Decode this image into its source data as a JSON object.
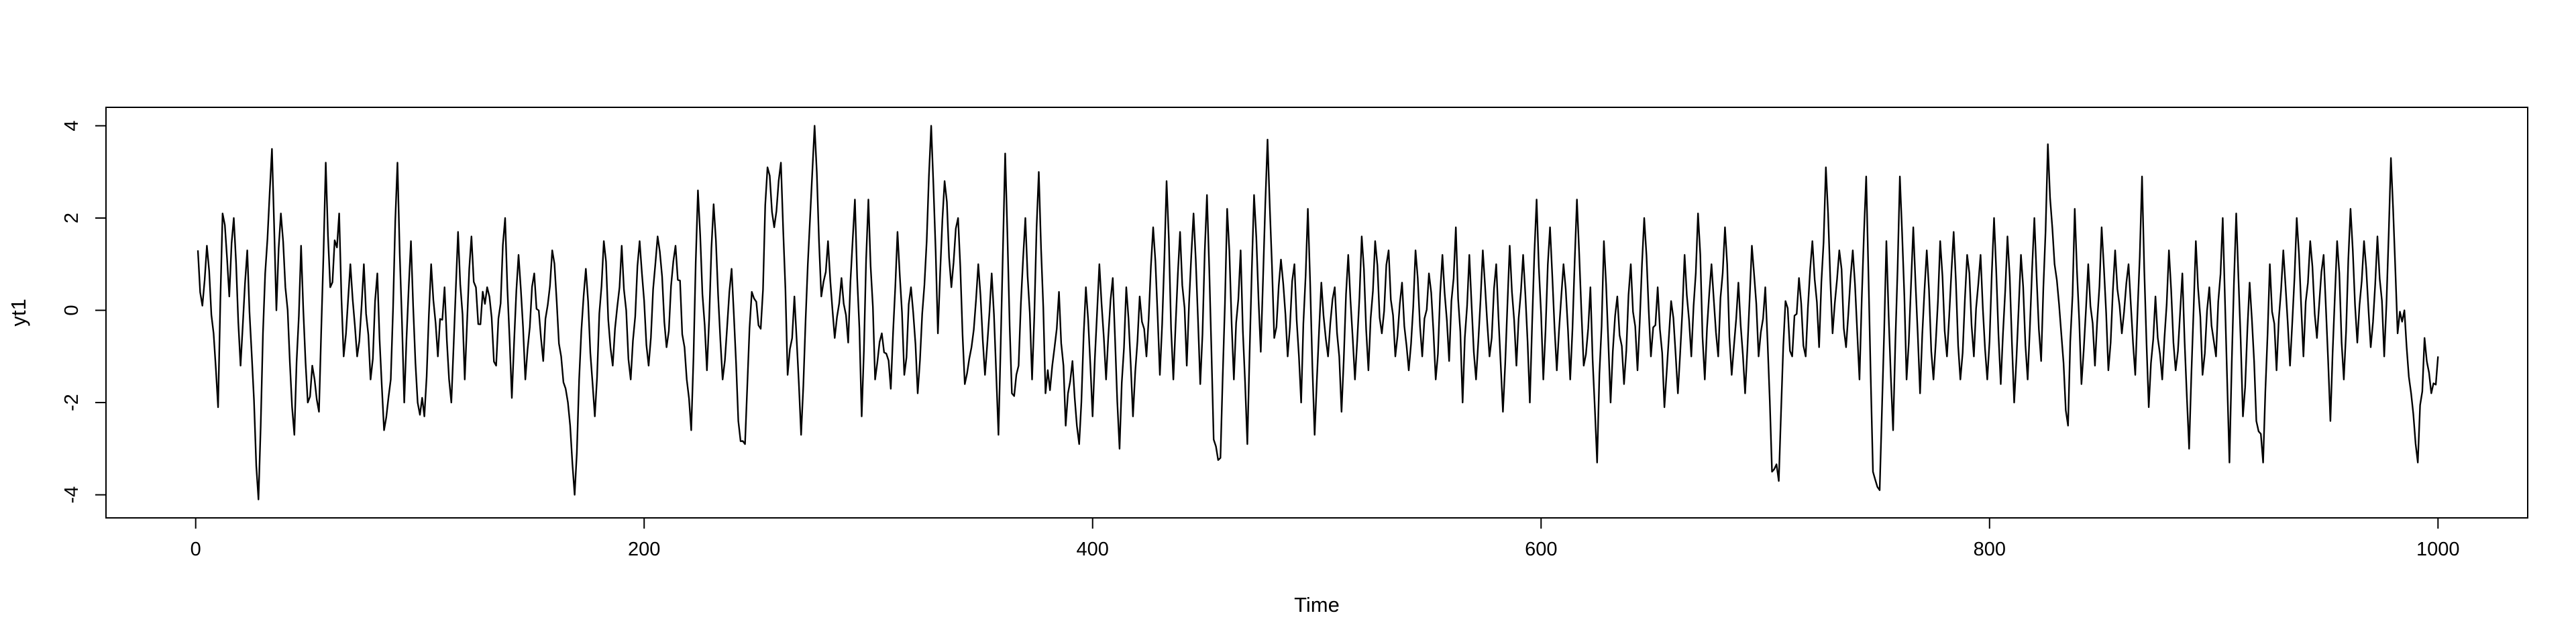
{
  "chart_data": {
    "type": "line",
    "title": "",
    "xlabel": "Time",
    "ylabel": "yt1",
    "xlim": [
      -40,
      1040
    ],
    "ylim": [
      -4.5,
      4.4
    ],
    "xticks": [
      0,
      200,
      400,
      600,
      800,
      1000
    ],
    "yticks": [
      -4,
      -2,
      0,
      2,
      4
    ],
    "xtick_labels": [
      "0",
      "200",
      "400",
      "600",
      "800",
      "1000"
    ],
    "ytick_labels": [
      "-4",
      "-2",
      "0",
      "2",
      "4"
    ],
    "grid": false,
    "line_color": "#000000",
    "series": [
      {
        "x_start": 1,
        "x_step": 1,
        "anchors": [
          [
            1,
            1.3
          ],
          [
            3,
            0.1
          ],
          [
            5,
            1.4
          ],
          [
            8,
            -0.5
          ],
          [
            10,
            -2.1
          ],
          [
            12,
            2.1
          ],
          [
            15,
            0.3
          ],
          [
            17,
            2.0
          ],
          [
            20,
            -1.2
          ],
          [
            23,
            1.3
          ],
          [
            28,
            -4.1
          ],
          [
            31,
            0.8
          ],
          [
            34,
            3.5
          ],
          [
            36,
            0.0
          ],
          [
            38,
            2.1
          ],
          [
            40,
            0.5
          ],
          [
            44,
            -2.7
          ],
          [
            47,
            1.4
          ],
          [
            50,
            -2.0
          ],
          [
            52,
            -1.2
          ],
          [
            55,
            -2.2
          ],
          [
            58,
            3.2
          ],
          [
            60,
            0.5
          ],
          [
            64,
            2.1
          ],
          [
            66,
            -1.0
          ],
          [
            69,
            1.0
          ],
          [
            72,
            -1.0
          ],
          [
            75,
            1.0
          ],
          [
            78,
            -1.5
          ],
          [
            81,
            0.8
          ],
          [
            84,
            -2.6
          ],
          [
            87,
            -1.5
          ],
          [
            90,
            3.2
          ],
          [
            93,
            -2.0
          ],
          [
            96,
            1.5
          ],
          [
            99,
            -2.0
          ],
          [
            102,
            -2.3
          ],
          [
            105,
            1.0
          ],
          [
            108,
            -1.0
          ],
          [
            111,
            0.5
          ],
          [
            114,
            -2.0
          ],
          [
            117,
            1.7
          ],
          [
            120,
            -1.5
          ],
          [
            123,
            1.6
          ],
          [
            126,
            -0.3
          ],
          [
            130,
            0.5
          ],
          [
            134,
            -1.2
          ],
          [
            138,
            2.0
          ],
          [
            141,
            -1.9
          ],
          [
            144,
            1.2
          ],
          [
            147,
            -1.5
          ],
          [
            151,
            0.8
          ],
          [
            155,
            -1.1
          ],
          [
            159,
            1.3
          ],
          [
            163,
            -1.0
          ],
          [
            166,
            -2.0
          ],
          [
            169,
            -4.0
          ],
          [
            171,
            -1.5
          ],
          [
            174,
            0.9
          ],
          [
            178,
            -2.3
          ],
          [
            182,
            1.5
          ],
          [
            186,
            -1.2
          ],
          [
            190,
            1.4
          ],
          [
            194,
            -1.5
          ],
          [
            198,
            1.5
          ],
          [
            202,
            -1.2
          ],
          [
            206,
            1.6
          ],
          [
            210,
            -0.8
          ],
          [
            214,
            1.4
          ],
          [
            218,
            -0.8
          ],
          [
            221,
            -2.6
          ],
          [
            224,
            2.6
          ],
          [
            228,
            -1.3
          ],
          [
            231,
            2.3
          ],
          [
            235,
            -1.5
          ],
          [
            239,
            0.9
          ],
          [
            242,
            -2.4
          ],
          [
            245,
            -2.9
          ],
          [
            248,
            0.4
          ],
          [
            252,
            -0.4
          ],
          [
            255,
            3.1
          ],
          [
            258,
            1.8
          ],
          [
            261,
            3.2
          ],
          [
            264,
            -1.4
          ],
          [
            267,
            0.3
          ],
          [
            270,
            -2.7
          ],
          [
            273,
            1.0
          ],
          [
            276,
            4.0
          ],
          [
            279,
            0.3
          ],
          [
            282,
            1.5
          ],
          [
            285,
            -0.6
          ],
          [
            288,
            0.7
          ],
          [
            291,
            -0.7
          ],
          [
            294,
            2.4
          ],
          [
            297,
            -2.3
          ],
          [
            300,
            2.4
          ],
          [
            303,
            -1.5
          ],
          [
            306,
            -0.5
          ],
          [
            310,
            -1.7
          ],
          [
            313,
            1.7
          ],
          [
            316,
            -1.4
          ],
          [
            319,
            0.5
          ],
          [
            322,
            -1.8
          ],
          [
            326,
            1.5
          ],
          [
            328,
            4.0
          ],
          [
            331,
            -0.5
          ],
          [
            334,
            2.8
          ],
          [
            337,
            0.5
          ],
          [
            340,
            2.0
          ],
          [
            343,
            -1.6
          ],
          [
            346,
            -0.8
          ],
          [
            349,
            1.0
          ],
          [
            352,
            -1.4
          ],
          [
            355,
            0.8
          ],
          [
            358,
            -2.7
          ],
          [
            361,
            3.4
          ],
          [
            364,
            -1.8
          ],
          [
            367,
            -1.2
          ],
          [
            370,
            2.0
          ],
          [
            373,
            -1.5
          ],
          [
            376,
            3.0
          ],
          [
            379,
            -1.8
          ],
          [
            382,
            -1.2
          ],
          [
            385,
            0.4
          ],
          [
            388,
            -2.5
          ],
          [
            391,
            -1.1
          ],
          [
            394,
            -2.9
          ],
          [
            397,
            0.5
          ],
          [
            400,
            -2.3
          ],
          [
            403,
            1.0
          ],
          [
            406,
            -1.5
          ],
          [
            409,
            0.7
          ],
          [
            412,
            -3.0
          ],
          [
            415,
            0.5
          ],
          [
            418,
            -2.3
          ],
          [
            421,
            0.3
          ],
          [
            424,
            -1.0
          ],
          [
            427,
            1.8
          ],
          [
            430,
            -1.4
          ],
          [
            433,
            2.8
          ],
          [
            436,
            -1.5
          ],
          [
            439,
            1.7
          ],
          [
            442,
            -1.2
          ],
          [
            445,
            2.1
          ],
          [
            448,
            -1.6
          ],
          [
            451,
            2.5
          ],
          [
            454,
            -2.8
          ],
          [
            457,
            -3.2
          ],
          [
            460,
            2.2
          ],
          [
            463,
            -1.5
          ],
          [
            466,
            1.3
          ],
          [
            469,
            -2.9
          ],
          [
            472,
            2.5
          ],
          [
            475,
            -0.9
          ],
          [
            478,
            3.7
          ],
          [
            481,
            -0.6
          ],
          [
            484,
            1.1
          ],
          [
            487,
            -1.0
          ],
          [
            490,
            1.0
          ],
          [
            493,
            -2.0
          ],
          [
            496,
            2.2
          ],
          [
            499,
            -2.7
          ],
          [
            502,
            0.6
          ],
          [
            505,
            -1.0
          ],
          [
            508,
            0.5
          ],
          [
            511,
            -2.2
          ],
          [
            514,
            1.2
          ],
          [
            517,
            -1.5
          ],
          [
            520,
            1.6
          ],
          [
            523,
            -1.3
          ],
          [
            526,
            1.5
          ],
          [
            529,
            -0.5
          ],
          [
            532,
            1.3
          ],
          [
            535,
            -1.0
          ],
          [
            538,
            0.6
          ],
          [
            541,
            -1.3
          ],
          [
            544,
            1.3
          ],
          [
            547,
            -1.0
          ],
          [
            550,
            0.8
          ],
          [
            553,
            -1.5
          ],
          [
            556,
            1.2
          ],
          [
            559,
            -1.1
          ],
          [
            562,
            1.8
          ],
          [
            565,
            -2.0
          ],
          [
            568,
            1.2
          ],
          [
            571,
            -1.5
          ],
          [
            574,
            1.3
          ],
          [
            577,
            -1.0
          ],
          [
            580,
            1.0
          ],
          [
            583,
            -2.2
          ],
          [
            586,
            1.4
          ],
          [
            589,
            -1.2
          ],
          [
            592,
            1.2
          ],
          [
            595,
            -2.0
          ],
          [
            598,
            2.4
          ],
          [
            601,
            -1.5
          ],
          [
            604,
            1.8
          ],
          [
            607,
            -1.3
          ],
          [
            610,
            1.0
          ],
          [
            613,
            -1.5
          ],
          [
            616,
            2.4
          ],
          [
            619,
            -1.2
          ],
          [
            622,
            0.5
          ],
          [
            625,
            -3.3
          ],
          [
            628,
            1.5
          ],
          [
            631,
            -2.0
          ],
          [
            634,
            0.3
          ],
          [
            637,
            -1.6
          ],
          [
            640,
            1.0
          ],
          [
            643,
            -1.3
          ],
          [
            646,
            2.0
          ],
          [
            649,
            -1.0
          ],
          [
            652,
            0.5
          ],
          [
            655,
            -2.1
          ],
          [
            658,
            0.2
          ],
          [
            661,
            -1.8
          ],
          [
            664,
            1.2
          ],
          [
            667,
            -1.0
          ],
          [
            670,
            2.1
          ],
          [
            673,
            -1.5
          ],
          [
            676,
            1.0
          ],
          [
            679,
            -1.0
          ],
          [
            682,
            1.8
          ],
          [
            685,
            -1.4
          ],
          [
            688,
            0.6
          ],
          [
            691,
            -1.8
          ],
          [
            694,
            1.4
          ],
          [
            697,
            -1.0
          ],
          [
            700,
            0.5
          ],
          [
            703,
            -3.5
          ],
          [
            706,
            -3.7
          ],
          [
            709,
            0.2
          ],
          [
            712,
            -1.0
          ],
          [
            715,
            0.7
          ],
          [
            718,
            -1.0
          ],
          [
            721,
            1.5
          ],
          [
            724,
            -0.8
          ],
          [
            727,
            3.1
          ],
          [
            730,
            -0.5
          ],
          [
            733,
            1.3
          ],
          [
            736,
            -0.8
          ],
          [
            739,
            1.3
          ],
          [
            742,
            -1.5
          ],
          [
            745,
            2.9
          ],
          [
            748,
            -3.5
          ],
          [
            751,
            -3.9
          ],
          [
            754,
            1.5
          ],
          [
            757,
            -2.6
          ],
          [
            760,
            2.9
          ],
          [
            763,
            -1.5
          ],
          [
            766,
            1.8
          ],
          [
            769,
            -1.8
          ],
          [
            772,
            1.3
          ],
          [
            775,
            -1.5
          ],
          [
            778,
            1.5
          ],
          [
            781,
            -1.0
          ],
          [
            784,
            1.7
          ],
          [
            787,
            -1.5
          ],
          [
            790,
            1.2
          ],
          [
            793,
            -1.0
          ],
          [
            796,
            1.2
          ],
          [
            799,
            -1.5
          ],
          [
            802,
            2.0
          ],
          [
            805,
            -1.6
          ],
          [
            808,
            1.6
          ],
          [
            811,
            -2.0
          ],
          [
            814,
            1.2
          ],
          [
            817,
            -1.5
          ],
          [
            820,
            2.0
          ],
          [
            823,
            -1.1
          ],
          [
            826,
            3.6
          ],
          [
            829,
            1.0
          ],
          [
            832,
            -0.5
          ],
          [
            835,
            -2.5
          ],
          [
            838,
            2.2
          ],
          [
            841,
            -1.6
          ],
          [
            844,
            1.0
          ],
          [
            847,
            -1.2
          ],
          [
            850,
            1.8
          ],
          [
            853,
            -1.3
          ],
          [
            856,
            1.3
          ],
          [
            859,
            -0.5
          ],
          [
            862,
            1.0
          ],
          [
            865,
            -1.4
          ],
          [
            868,
            2.9
          ],
          [
            871,
            -2.1
          ],
          [
            874,
            0.3
          ],
          [
            877,
            -1.5
          ],
          [
            880,
            1.3
          ],
          [
            883,
            -1.3
          ],
          [
            886,
            0.8
          ],
          [
            889,
            -3.0
          ],
          [
            892,
            1.5
          ],
          [
            895,
            -1.4
          ],
          [
            898,
            0.5
          ],
          [
            901,
            -1.0
          ],
          [
            904,
            2.0
          ],
          [
            907,
            -3.3
          ],
          [
            910,
            2.1
          ],
          [
            913,
            -2.3
          ],
          [
            916,
            0.6
          ],
          [
            919,
            -2.4
          ],
          [
            922,
            -3.3
          ],
          [
            925,
            1.0
          ],
          [
            928,
            -1.3
          ],
          [
            931,
            1.3
          ],
          [
            934,
            -1.2
          ],
          [
            937,
            2.0
          ],
          [
            940,
            -1.0
          ],
          [
            943,
            1.5
          ],
          [
            946,
            -0.6
          ],
          [
            949,
            1.2
          ],
          [
            952,
            -2.4
          ],
          [
            955,
            1.5
          ],
          [
            958,
            -1.5
          ],
          [
            961,
            2.2
          ],
          [
            964,
            -0.7
          ],
          [
            967,
            1.5
          ],
          [
            970,
            -0.8
          ],
          [
            973,
            1.6
          ],
          [
            976,
            -1.0
          ],
          [
            979,
            3.3
          ],
          [
            982,
            -0.5
          ],
          [
            985,
            0.0
          ],
          [
            988,
            -1.8
          ],
          [
            991,
            -3.3
          ],
          [
            994,
            -0.6
          ],
          [
            997,
            -1.8
          ],
          [
            1000,
            -1.0
          ]
        ]
      }
    ]
  }
}
